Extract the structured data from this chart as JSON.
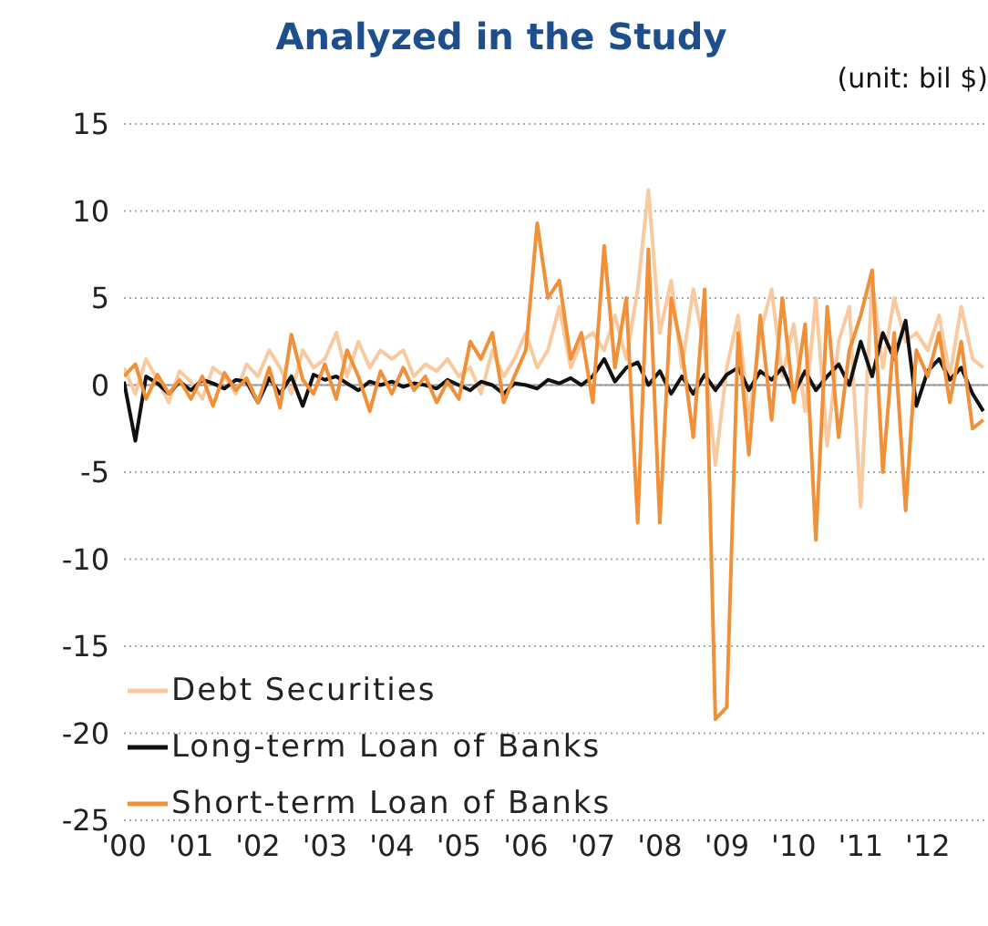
{
  "chart_data": {
    "type": "line",
    "title": "Analyzed in the Study",
    "annotations": [
      "(unit: bil $)"
    ],
    "x": [
      2000,
      2000.17,
      2000.33,
      2000.5,
      2000.67,
      2000.83,
      2001,
      2001.17,
      2001.33,
      2001.5,
      2001.67,
      2001.83,
      2002,
      2002.17,
      2002.33,
      2002.5,
      2002.67,
      2002.83,
      2003,
      2003.17,
      2003.33,
      2003.5,
      2003.67,
      2003.83,
      2004,
      2004.17,
      2004.33,
      2004.5,
      2004.67,
      2004.83,
      2005,
      2005.17,
      2005.33,
      2005.5,
      2005.67,
      2005.83,
      2006,
      2006.17,
      2006.33,
      2006.5,
      2006.67,
      2006.83,
      2007,
      2007.17,
      2007.33,
      2007.5,
      2007.67,
      2007.83,
      2008,
      2008.17,
      2008.33,
      2008.5,
      2008.67,
      2008.83,
      2009,
      2009.17,
      2009.33,
      2009.5,
      2009.67,
      2009.83,
      2010,
      2010.17,
      2010.33,
      2010.5,
      2010.67,
      2010.83,
      2011,
      2011.17,
      2011.33,
      2011.5,
      2011.67,
      2011.83,
      2012,
      2012.17,
      2012.33,
      2012.5,
      2012.67,
      2012.83
    ],
    "series": [
      {
        "name": "Debt Securities",
        "color": "#f9c9a0",
        "values": [
          1.0,
          -0.5,
          1.5,
          0.3,
          -1.0,
          0.8,
          0.2,
          -0.8,
          1.0,
          0.5,
          -0.5,
          1.2,
          0.5,
          2.0,
          1.0,
          -0.5,
          2.0,
          1.0,
          1.5,
          3.0,
          0.5,
          2.5,
          1.0,
          2.0,
          1.5,
          2.0,
          0.5,
          1.2,
          0.8,
          1.5,
          0.5,
          1.0,
          -0.5,
          2.0,
          0.5,
          1.5,
          3.0,
          1.0,
          2.0,
          4.5,
          1.0,
          2.5,
          3.0,
          2.0,
          4.0,
          1.5,
          5.5,
          11.2,
          3.0,
          6.0,
          1.0,
          5.5,
          2.0,
          -4.6,
          1.0,
          4.0,
          -2.0,
          3.0,
          5.5,
          0.5,
          3.5,
          -1.5,
          5.0,
          -3.5,
          2.5,
          4.5,
          -7.0,
          6.0,
          1.0,
          5.0,
          2.5,
          3.0,
          2.0,
          4.0,
          0.5,
          4.5,
          1.5,
          1.0
        ]
      },
      {
        "name": "Long-term Loan of Banks",
        "color": "#111111",
        "values": [
          0.2,
          -3.2,
          0.5,
          0.1,
          -0.5,
          0.2,
          -0.3,
          0.3,
          0.1,
          -0.2,
          0.3,
          0.2,
          -1.0,
          0.4,
          -0.5,
          0.5,
          -1.2,
          0.6,
          0.3,
          0.5,
          0.1,
          -0.3,
          0.2,
          0.0,
          0.2,
          -0.1,
          0.1,
          0.0,
          -0.2,
          0.3,
          0.0,
          -0.3,
          0.2,
          0.0,
          -0.5,
          0.1,
          0.0,
          -0.2,
          0.3,
          0.1,
          0.4,
          0.0,
          0.5,
          1.5,
          0.2,
          1.0,
          1.3,
          0.0,
          0.8,
          -0.5,
          0.5,
          -0.5,
          0.6,
          -0.3,
          0.6,
          1.0,
          -0.3,
          0.8,
          0.3,
          1.0,
          -0.5,
          0.8,
          -0.3,
          0.5,
          1.2,
          0.0,
          2.5,
          0.5,
          3.0,
          1.5,
          3.7,
          -1.2,
          0.8,
          1.5,
          0.3,
          1.0,
          -0.5,
          -1.5
        ]
      },
      {
        "name": "Short-term Loan of Banks",
        "color": "#f0913a",
        "values": [
          0.5,
          1.2,
          -0.8,
          0.6,
          -0.5,
          0.3,
          -0.8,
          0.5,
          -1.2,
          0.7,
          -0.3,
          0.4,
          -1.0,
          1.0,
          -1.3,
          2.9,
          0.3,
          -0.5,
          1.2,
          -0.8,
          2.0,
          0.5,
          -1.5,
          0.8,
          -0.5,
          1.0,
          -0.3,
          0.5,
          -1.0,
          0.2,
          -0.8,
          2.5,
          1.5,
          3.0,
          -1.0,
          0.5,
          2.0,
          9.3,
          5.0,
          6.0,
          1.5,
          3.0,
          -1.0,
          8.0,
          1.0,
          5.0,
          -7.9,
          7.8,
          -7.9,
          5.0,
          2.0,
          -3.0,
          5.5,
          -19.2,
          -18.5,
          3.0,
          -4.0,
          4.0,
          -2.0,
          5.0,
          -1.0,
          3.5,
          -8.9,
          4.5,
          -3.0,
          2.0,
          4.0,
          6.6,
          -5.0,
          3.0,
          -7.2,
          2.0,
          0.5,
          3.0,
          -1.0,
          2.5,
          -2.5,
          -2.0
        ]
      }
    ],
    "xlim": [
      2000,
      2012.9
    ],
    "xticks": [
      {
        "value": 2000,
        "label": "'00"
      },
      {
        "value": 2001,
        "label": "'01"
      },
      {
        "value": 2002,
        "label": "'02"
      },
      {
        "value": 2003,
        "label": "'03"
      },
      {
        "value": 2004,
        "label": "'04"
      },
      {
        "value": 2005,
        "label": "'05"
      },
      {
        "value": 2006,
        "label": "'06"
      },
      {
        "value": 2007,
        "label": "'07"
      },
      {
        "value": 2008,
        "label": "'08"
      },
      {
        "value": 2009,
        "label": "'09"
      },
      {
        "value": 2010,
        "label": "'10"
      },
      {
        "value": 2011,
        "label": "'11"
      },
      {
        "value": 2012,
        "label": "'12"
      }
    ],
    "ylim": [
      -25,
      15
    ],
    "yticks": [
      -25,
      -20,
      -15,
      -10,
      -5,
      0,
      5,
      10,
      15
    ],
    "ref_lines": [
      {
        "axis": "y",
        "value": 0,
        "color": "#999999"
      }
    ],
    "grid": "y",
    "legend": "bottom left",
    "marker": "none",
    "line_style": "solid"
  }
}
